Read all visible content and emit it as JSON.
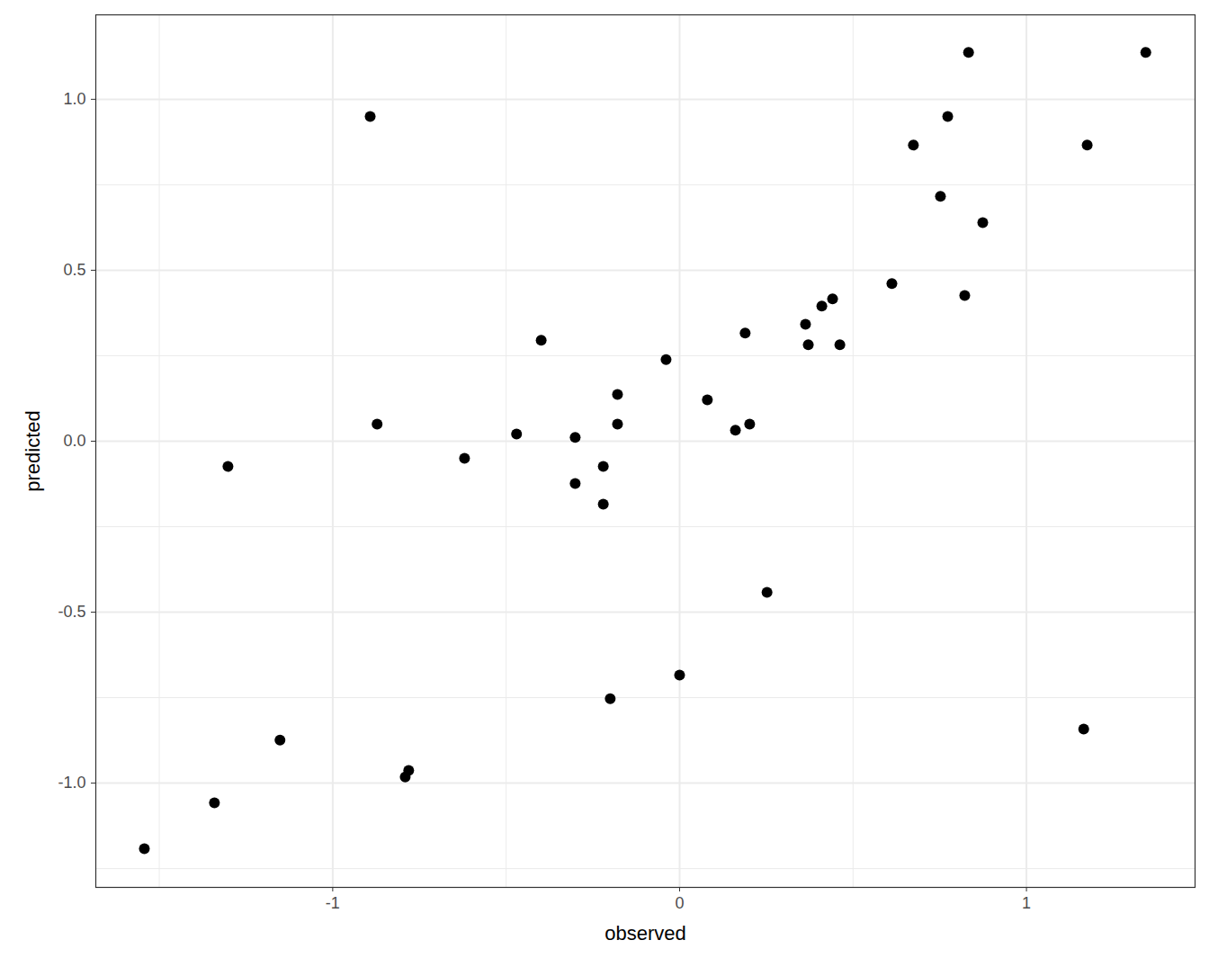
{
  "chart_data": {
    "type": "scatter",
    "x_label": "observed",
    "y_label": "predicted",
    "x": [
      -0.892,
      0.833,
      1.344,
      0.674,
      1.175,
      0.773,
      0.752,
      0.874,
      0.612,
      0.822,
      0.441,
      0.41,
      0.363,
      0.371,
      0.462,
      0.189,
      -0.399,
      -0.039,
      -0.179,
      0.08,
      -0.872,
      -0.179,
      0.202,
      0.161,
      -0.47,
      -0.301,
      -0.62,
      -1.302,
      -0.22,
      -0.301,
      -0.22,
      0.252,
      0.0,
      -0.2,
      1.165,
      -1.152,
      -0.781,
      -0.791,
      -1.341,
      -1.543
    ],
    "values": [
      0.95,
      1.137,
      1.137,
      0.866,
      0.866,
      0.95,
      0.716,
      0.639,
      0.461,
      0.426,
      0.416,
      0.395,
      0.342,
      0.282,
      0.282,
      0.316,
      0.295,
      0.239,
      0.137,
      0.121,
      0.05,
      0.05,
      0.05,
      0.032,
      0.021,
      0.011,
      -0.05,
      -0.074,
      -0.074,
      -0.124,
      -0.184,
      -0.442,
      -0.684,
      -0.753,
      -0.842,
      -0.874,
      -0.963,
      -0.982,
      -1.058,
      -1.192
    ],
    "color": "#000000",
    "xlim": [
      -1.683,
      1.486
    ],
    "xticks": [
      -1,
      0,
      1
    ],
    "ylim": [
      -1.305,
      1.247
    ],
    "yticks": [
      {
        "value": -1,
        "label": "-1.0"
      },
      {
        "value": -0.5,
        "label": "-0.5"
      },
      {
        "value": 0,
        "label": "0.0"
      },
      {
        "value": 0.5,
        "label": "0.5"
      },
      {
        "value": 1,
        "label": "1.0"
      }
    ],
    "grid": true
  }
}
